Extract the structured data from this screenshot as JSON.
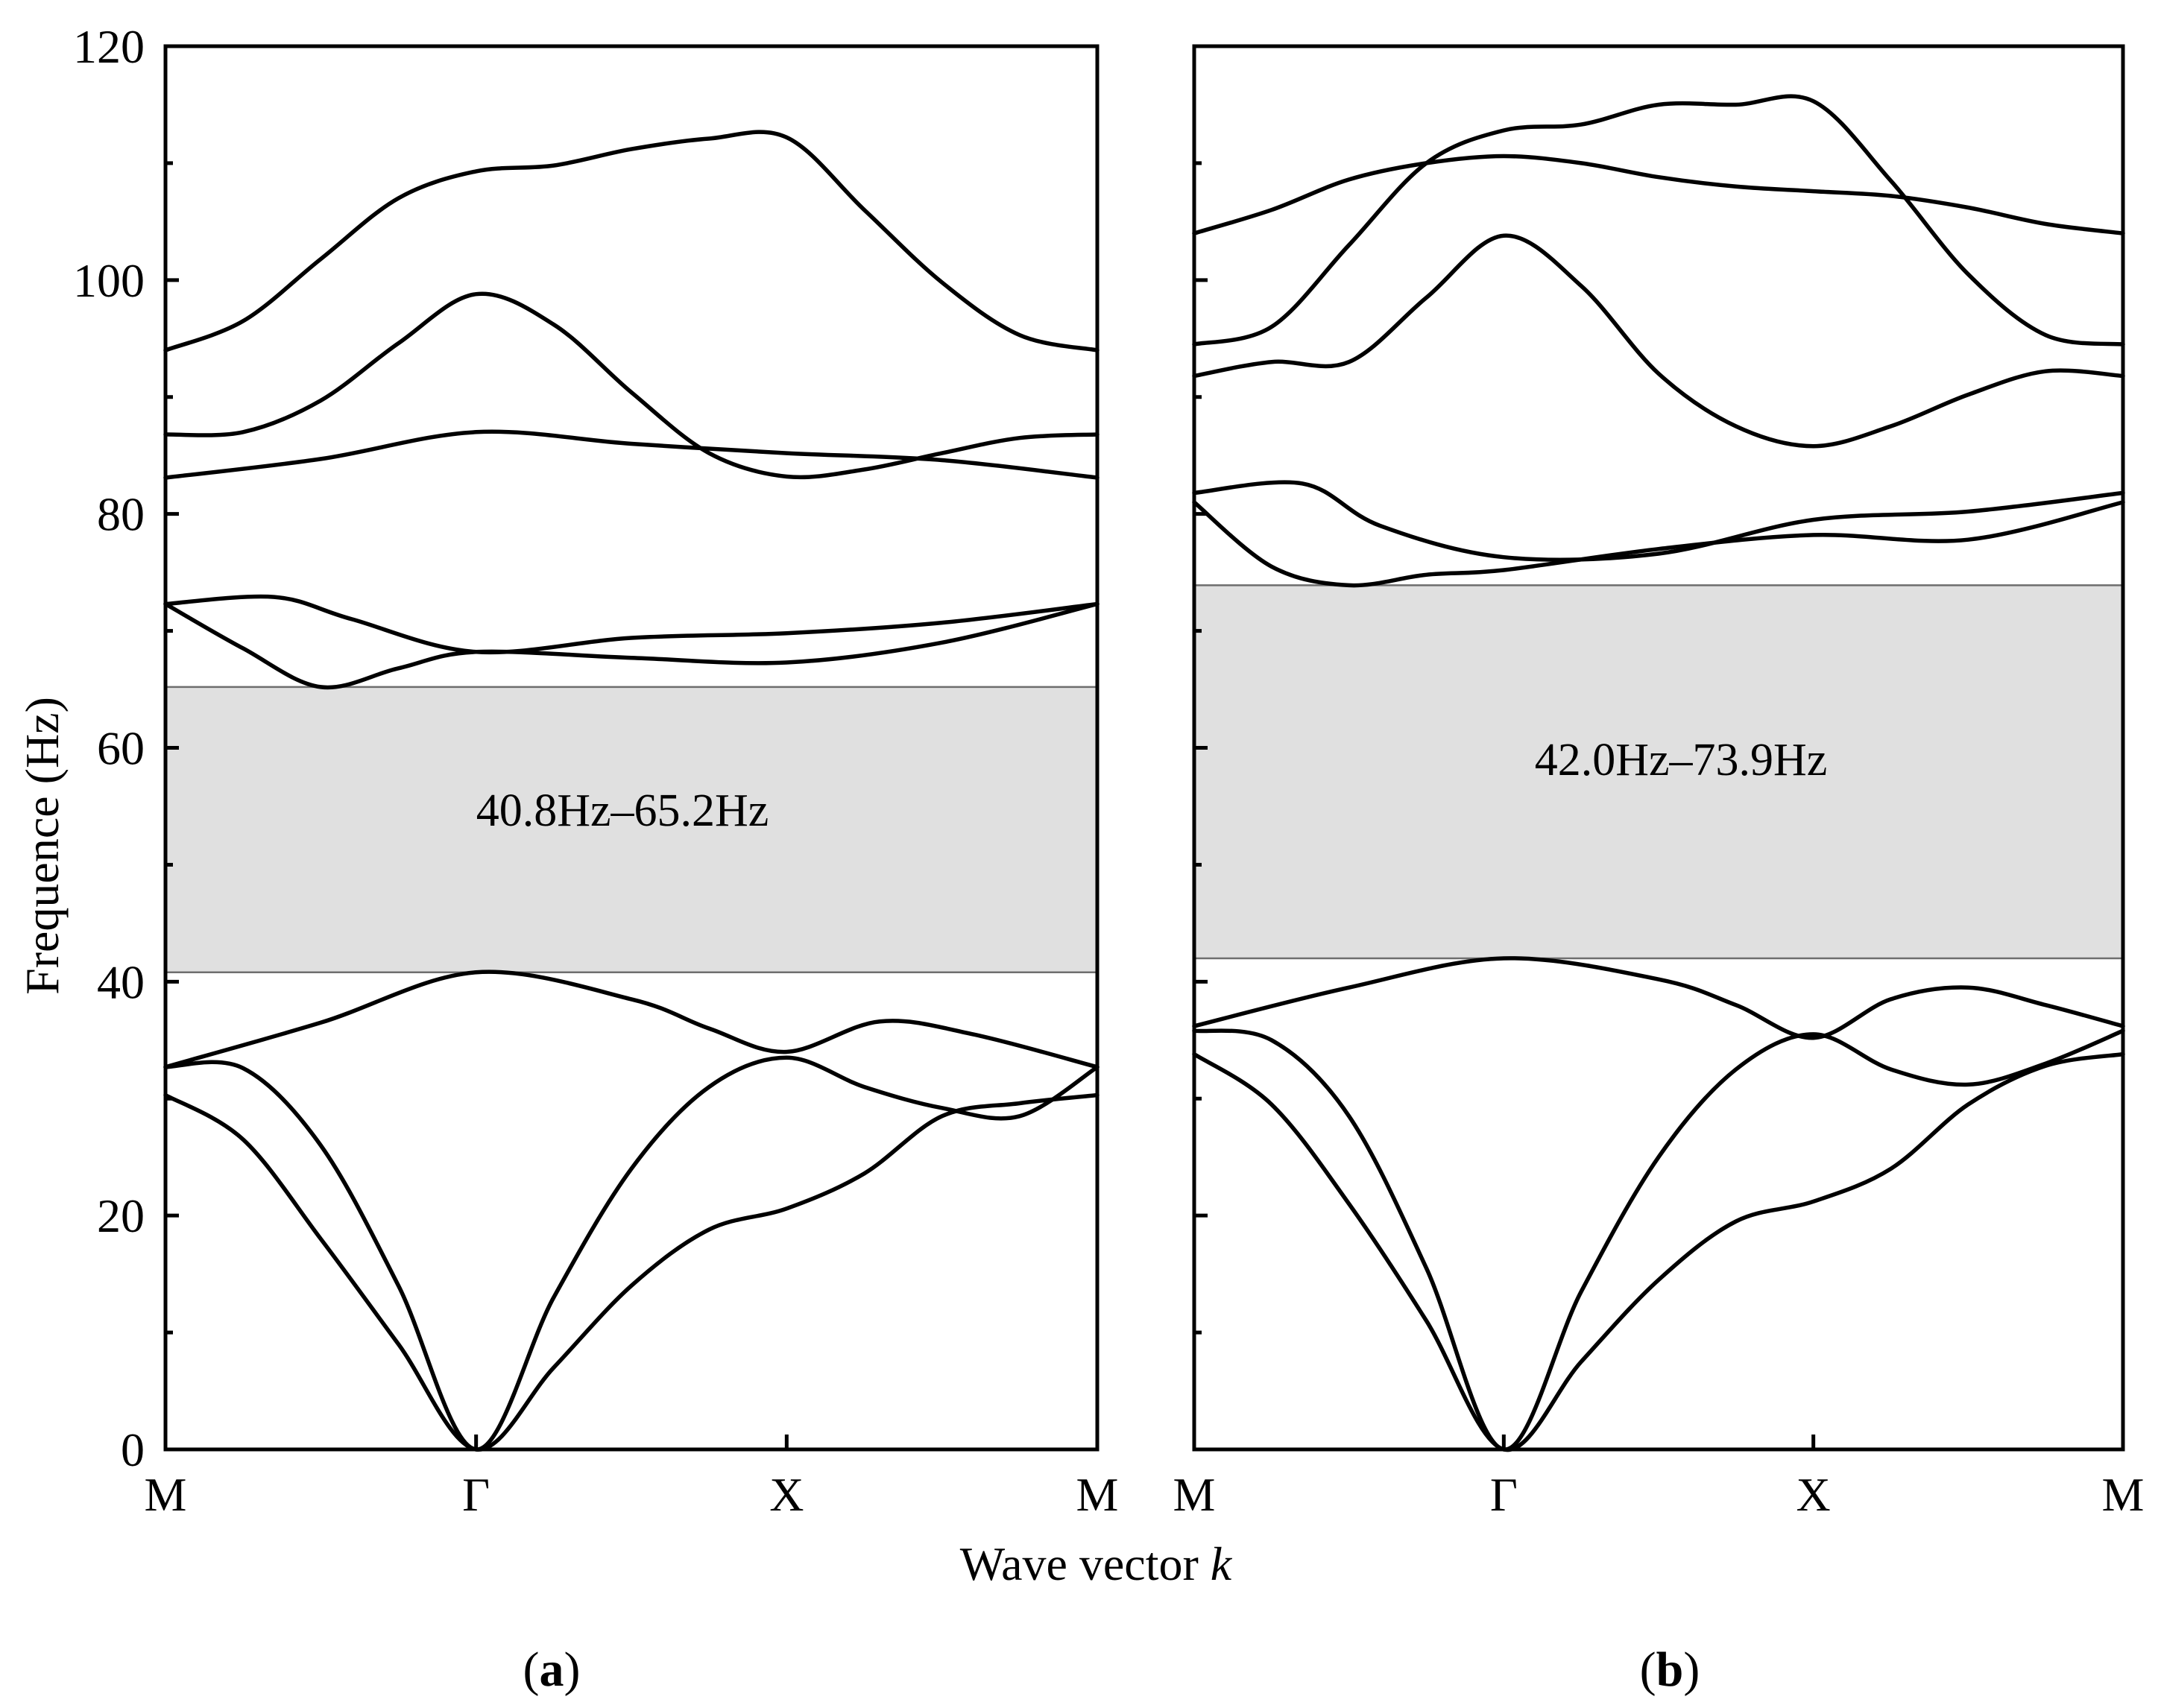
{
  "chart_data": [
    {
      "type": "line",
      "panel": "a",
      "panel_label": "a",
      "ylabel": "Frequence (Hz)",
      "xlabel": "Wave vector k",
      "ylim": [
        0,
        120
      ],
      "yticks": [
        0,
        20,
        40,
        60,
        80,
        100,
        120
      ],
      "x_points": [
        "M",
        "Γ",
        "X",
        "M"
      ],
      "bandgap": {
        "from": 40.8,
        "to": 65.2,
        "label": "40.8Hz–65.2Hz"
      },
      "series": [
        {
          "name": "band 1",
          "x": [
            0,
            0.25,
            0.5,
            0.75,
            1,
            1.25,
            1.5,
            1.75,
            2,
            2.25,
            2.5,
            2.75,
            3
          ],
          "y": [
            30.3,
            26.5,
            18,
            9,
            0,
            7,
            14,
            18.8,
            20.6,
            23.6,
            28.5,
            29.6,
            30.3
          ]
        },
        {
          "name": "band 2",
          "x": [
            0,
            0.25,
            0.5,
            0.75,
            1,
            1.25,
            1.5,
            1.75,
            2,
            2.25,
            2.5,
            2.75,
            3
          ],
          "y": [
            32.7,
            32.6,
            26,
            14,
            0,
            13,
            24,
            31,
            33.5,
            31,
            29.2,
            28.5,
            32.7
          ]
        },
        {
          "name": "band 3",
          "x": [
            0,
            0.5,
            1,
            1.5,
            1.75,
            2,
            2.3,
            2.6,
            3
          ],
          "y": [
            32.7,
            36.5,
            40.8,
            38.5,
            36,
            34,
            36.6,
            35.5,
            32.7
          ]
        },
        {
          "name": "band 4",
          "x": [
            0,
            0.25,
            0.5,
            0.75,
            1,
            1.5,
            2,
            2.5,
            3
          ],
          "y": [
            72.3,
            68.5,
            65.2,
            66.8,
            68.2,
            67.7,
            67.3,
            69,
            72.3
          ]
        },
        {
          "name": "band 5",
          "x": [
            0,
            0.35,
            0.6,
            1,
            1.5,
            2,
            2.5,
            3
          ],
          "y": [
            72.3,
            72.9,
            71,
            68.2,
            69.4,
            69.8,
            70.7,
            72.3
          ]
        },
        {
          "name": "band 6",
          "x": [
            0,
            0.5,
            1,
            1.5,
            2,
            2.5,
            3
          ],
          "y": [
            83.1,
            84.7,
            87,
            86,
            85.2,
            84.6,
            83.1
          ]
        },
        {
          "name": "band 7",
          "x": [
            0,
            0.25,
            0.5,
            0.75,
            1,
            1.25,
            1.5,
            1.75,
            2,
            2.25,
            2.5,
            2.75,
            3
          ],
          "y": [
            86.8,
            87,
            89.7,
            94.6,
            98.8,
            96.2,
            90.4,
            85.2,
            83.2,
            83.8,
            85.2,
            86.5,
            86.8
          ]
        },
        {
          "name": "band 8",
          "x": [
            0,
            0.25,
            0.5,
            0.75,
            1,
            1.25,
            1.5,
            1.75,
            2,
            2.25,
            2.5,
            2.75,
            3
          ],
          "y": [
            94,
            96.5,
            101.8,
            107,
            109.3,
            109.8,
            111.2,
            112.1,
            112.2,
            106,
            99.8,
            95.3,
            94
          ]
        }
      ]
    },
    {
      "type": "line",
      "panel": "b",
      "panel_label": "b",
      "ylim": [
        0,
        120
      ],
      "x_points": [
        "M",
        "Γ",
        "X",
        "M"
      ],
      "bandgap": {
        "from": 42.0,
        "to": 73.9,
        "label": "42.0Hz–73.9Hz"
      },
      "series": [
        {
          "name": "band 1",
          "x": [
            0,
            0.25,
            0.5,
            0.75,
            1,
            1.25,
            1.5,
            1.75,
            2,
            2.25,
            2.5,
            2.75,
            3
          ],
          "y": [
            33.8,
            29.5,
            21,
            11,
            0,
            7.5,
            14.5,
            19.5,
            21.2,
            24,
            29.5,
            32.8,
            33.8
          ]
        },
        {
          "name": "band 2",
          "x": [
            0,
            0.25,
            0.5,
            0.75,
            1,
            1.25,
            1.5,
            1.75,
            2,
            2.25,
            2.5,
            2.75,
            3
          ],
          "y": [
            35.8,
            35,
            28.5,
            15.5,
            0,
            13.5,
            25,
            32.5,
            35.5,
            32.5,
            31.2,
            33,
            35.8
          ]
        },
        {
          "name": "band 3",
          "x": [
            0,
            0.5,
            1,
            1.5,
            1.75,
            2,
            2.25,
            2.5,
            2.75,
            3
          ],
          "y": [
            36.2,
            39.5,
            42,
            40.2,
            38,
            35.2,
            38.5,
            39.5,
            38,
            36.2
          ]
        },
        {
          "name": "band 4",
          "x": [
            0,
            0.25,
            0.5,
            0.75,
            1,
            1.5,
            2,
            2.5,
            3
          ],
          "y": [
            81,
            75.5,
            73.9,
            74.8,
            75.2,
            77,
            78.2,
            77.8,
            81
          ]
        },
        {
          "name": "band 5",
          "x": [
            0,
            0.35,
            0.6,
            1,
            1.5,
            2,
            2.5,
            3
          ],
          "y": [
            81.8,
            82.6,
            79,
            76.3,
            76.6,
            79.5,
            80.2,
            81.8
          ]
        },
        {
          "name": "band 6",
          "x": [
            0,
            0.25,
            0.5,
            0.75,
            1,
            1.25,
            1.5,
            1.75,
            2,
            2.25,
            2.5,
            2.75,
            3
          ],
          "y": [
            91.8,
            93,
            93,
            98.5,
            103.8,
            99.5,
            92,
            87.5,
            85.8,
            87.5,
            90.2,
            92.2,
            91.8
          ]
        },
        {
          "name": "band 7",
          "x": [
            0,
            0.25,
            0.5,
            0.75,
            1,
            1.25,
            1.5,
            1.75,
            2,
            2.25,
            2.5,
            2.75,
            3
          ],
          "y": [
            94.5,
            96,
            103,
            110,
            112.8,
            113.3,
            115,
            115,
            115.3,
            108.5,
            100.5,
            95.3,
            94.5
          ]
        },
        {
          "name": "band 8",
          "x": [
            0,
            0.25,
            0.5,
            0.75,
            1,
            1.25,
            1.5,
            1.75,
            2,
            2.25,
            2.5,
            2.75,
            3
          ],
          "y": [
            104,
            106,
            108.6,
            110,
            110.6,
            110,
            108.8,
            108,
            107.6,
            107.2,
            106.2,
            104.8,
            104
          ]
        }
      ]
    }
  ]
}
